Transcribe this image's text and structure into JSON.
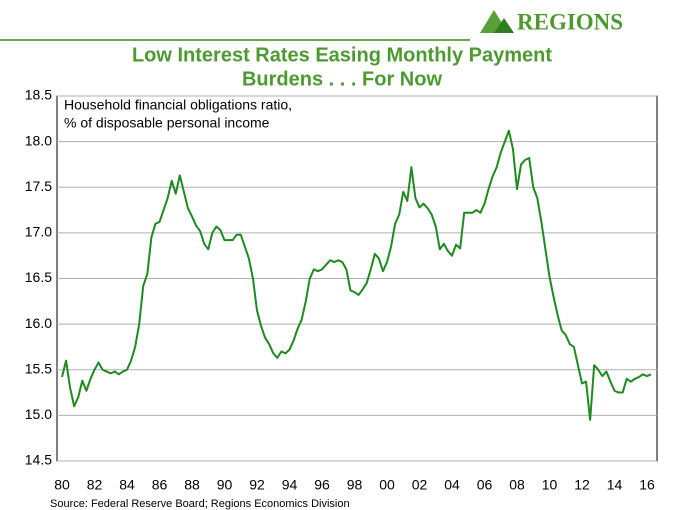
{
  "logo": "REGIONS",
  "chart_data": {
    "type": "line",
    "title": [
      "Low Interest Rates Easing Monthly Payment",
      "Burdens . . . For Now"
    ],
    "annotation": [
      "Household financial obligations ratio,",
      "% of disposable personal income"
    ],
    "source": "Source: Federal Reserve Board; Regions Economics Division",
    "categories": [
      "80",
      null,
      null,
      null,
      null,
      null,
      null,
      null,
      "82",
      null,
      null,
      null,
      null,
      null,
      null,
      null,
      "84",
      null,
      null,
      null,
      null,
      null,
      null,
      null,
      "86",
      null,
      null,
      null,
      null,
      null,
      null,
      null,
      "88",
      null,
      null,
      null,
      null,
      null,
      null,
      null,
      "90",
      null,
      null,
      null,
      null,
      null,
      null,
      null,
      "92",
      null,
      null,
      null,
      null,
      null,
      null,
      null,
      "94",
      null,
      null,
      null,
      null,
      null,
      null,
      null,
      "96",
      null,
      null,
      null,
      null,
      null,
      null,
      null,
      "98",
      null,
      null,
      null,
      null,
      null,
      null,
      null,
      "00",
      null,
      null,
      null,
      null,
      null,
      null,
      null,
      "02",
      null,
      null,
      null,
      null,
      null,
      null,
      null,
      "04",
      null,
      null,
      null,
      null,
      null,
      null,
      null,
      "06",
      null,
      null,
      null,
      null,
      null,
      null,
      null,
      "08",
      null,
      null,
      null,
      null,
      null,
      null,
      null,
      "10",
      null,
      null,
      null,
      null,
      null,
      null,
      null,
      "12",
      null,
      null,
      null,
      null,
      null,
      null,
      null,
      "14",
      null,
      null,
      null,
      null,
      null,
      null,
      null,
      "16",
      null
    ],
    "values": [
      15.42,
      15.6,
      15.3,
      15.1,
      15.2,
      15.38,
      15.27,
      15.4,
      15.5,
      15.58,
      15.5,
      15.48,
      15.46,
      15.48,
      15.45,
      15.48,
      15.5,
      15.6,
      15.75,
      16.0,
      16.42,
      16.55,
      16.95,
      17.1,
      17.12,
      17.25,
      17.38,
      17.57,
      17.43,
      17.63,
      17.45,
      17.27,
      17.18,
      17.08,
      17.02,
      16.88,
      16.82,
      17.0,
      17.07,
      17.03,
      16.92,
      16.92,
      16.92,
      16.98,
      16.98,
      16.85,
      16.72,
      16.5,
      16.15,
      15.98,
      15.85,
      15.78,
      15.68,
      15.63,
      15.7,
      15.68,
      15.72,
      15.82,
      15.95,
      16.05,
      16.25,
      16.5,
      16.6,
      16.58,
      16.6,
      16.65,
      16.7,
      16.68,
      16.7,
      16.68,
      16.6,
      16.37,
      16.35,
      16.32,
      16.38,
      16.45,
      16.6,
      16.77,
      16.72,
      16.58,
      16.68,
      16.85,
      17.1,
      17.2,
      17.45,
      17.35,
      17.72,
      17.38,
      17.28,
      17.32,
      17.27,
      17.2,
      17.07,
      16.82,
      16.88,
      16.8,
      16.75,
      16.87,
      16.83,
      17.22,
      17.22,
      17.22,
      17.25,
      17.22,
      17.32,
      17.48,
      17.62,
      17.72,
      17.88,
      18.0,
      18.12,
      17.92,
      17.48,
      17.75,
      17.8,
      17.82,
      17.5,
      17.38,
      17.12,
      16.82,
      16.52,
      16.3,
      16.1,
      15.93,
      15.88,
      15.78,
      15.75,
      15.55,
      15.35,
      15.37,
      14.95,
      15.55,
      15.5,
      15.43,
      15.48,
      15.37,
      15.27,
      15.25,
      15.25,
      15.4,
      15.37,
      15.4,
      15.42,
      15.45,
      15.43,
      15.45
    ],
    "color": "#1f8a1f",
    "ylim": [
      14.5,
      18.5
    ],
    "yticks": [
      14.5,
      {
        "value": 15,
        "label": "15.0"
      },
      15.5,
      {
        "value": 16,
        "label": "16.0"
      },
      16.5,
      {
        "value": 17,
        "label": "17.0"
      },
      17.5,
      {
        "value": 18,
        "label": "18.0"
      },
      18.5
    ],
    "grid": true
  }
}
